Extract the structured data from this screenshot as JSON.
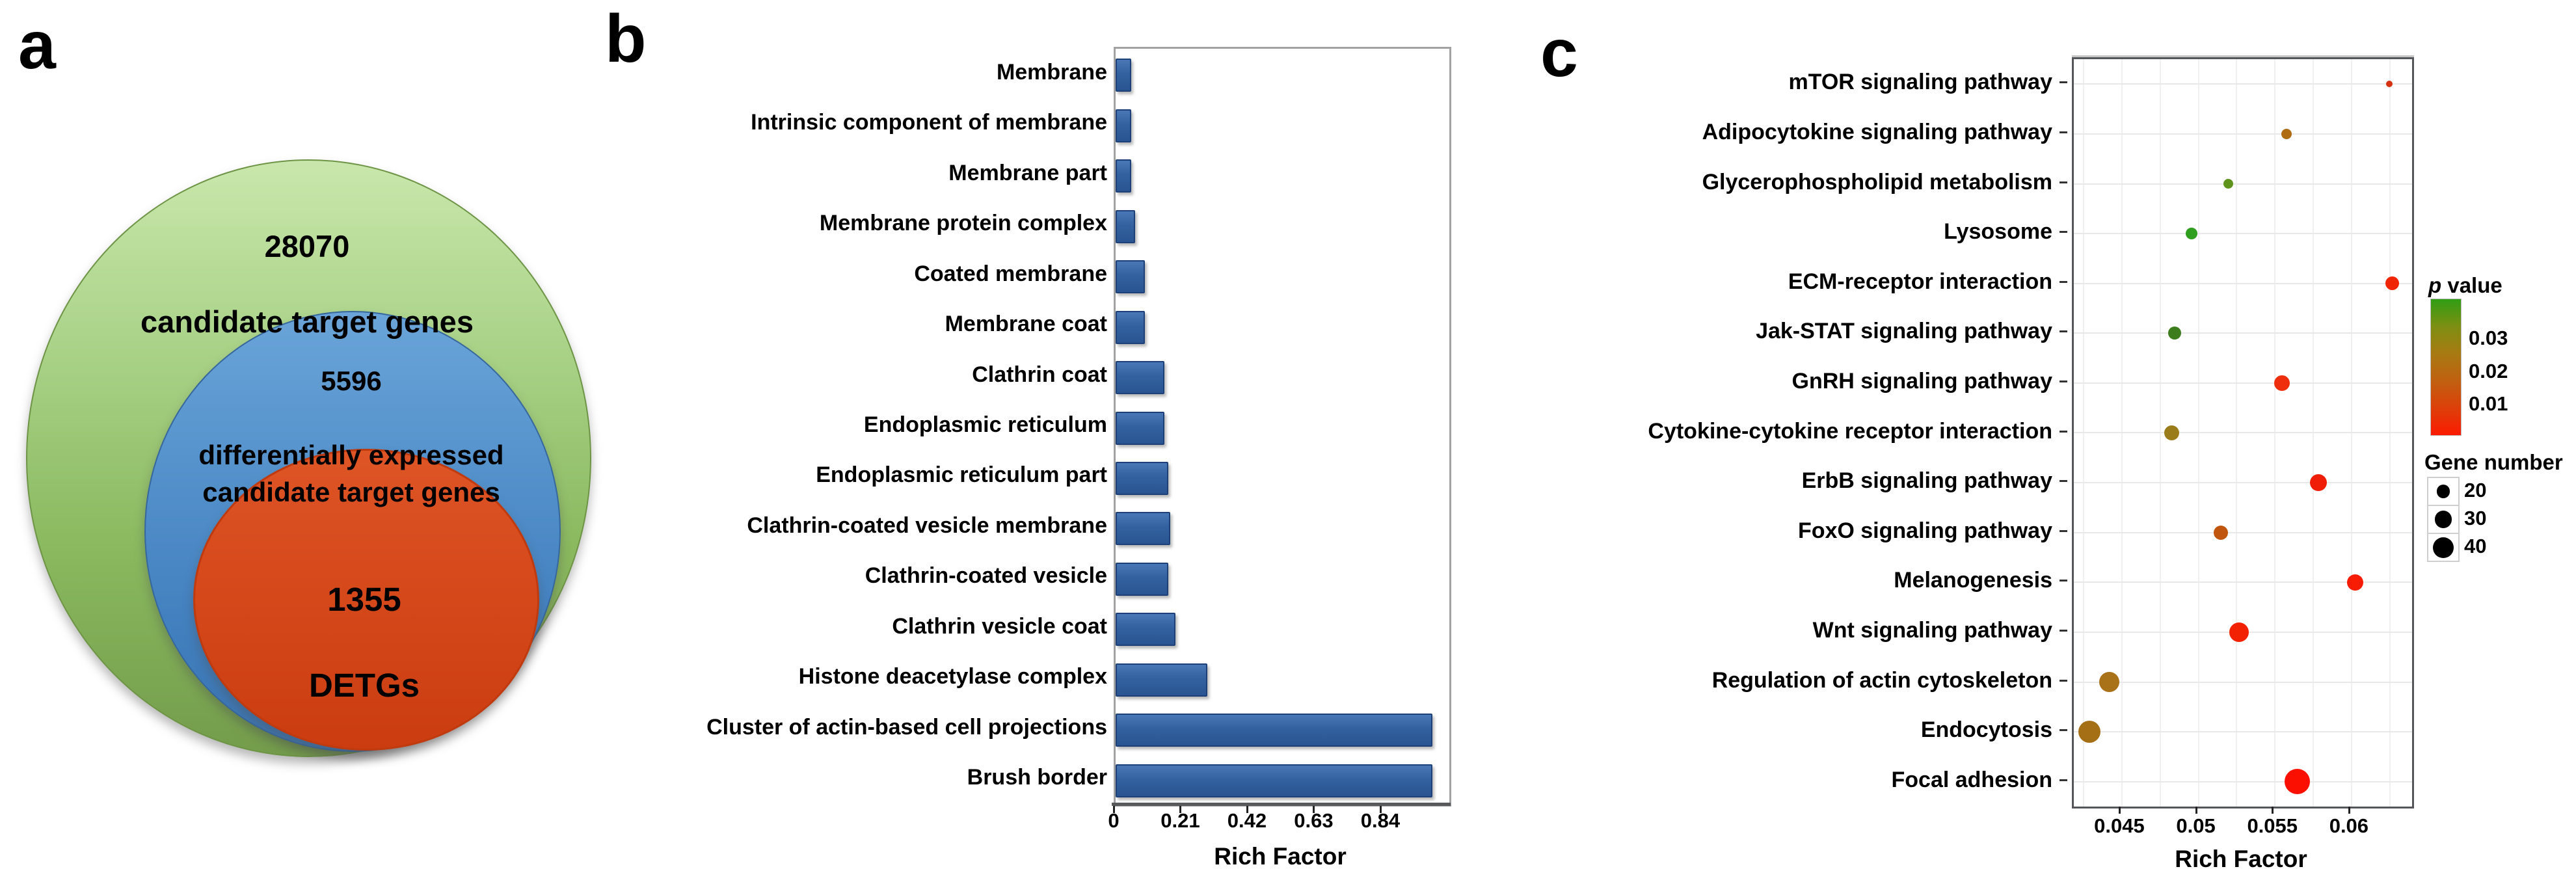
{
  "figure_labels": {
    "a": "a",
    "b": "b",
    "c": "c"
  },
  "panel_a": {
    "sets": [
      {
        "name": "candidate target genes",
        "count": "28070",
        "label": "candidate target genes",
        "fill_top": "#c9e7ac",
        "fill_bottom": "#739c4b",
        "border": "#6d9445"
      },
      {
        "name": "differentially expressed candidate target genes",
        "count": "5596",
        "label": "differentially expressed\ncandidate target genes",
        "fill_top": "#6aa4d8",
        "fill_bottom": "#3a74b2",
        "border": "#35679d"
      },
      {
        "name": "DETGs",
        "count": "1355",
        "label": "DETGs",
        "fill_top": "#de5526",
        "fill_bottom": "#cb3d11",
        "border": "#bf3a0e"
      }
    ]
  },
  "chart_data": [
    {
      "id": "b",
      "type": "bar",
      "orientation": "horizontal",
      "title": "",
      "xlabel": "Rich Factor",
      "x_tick_values": [
        0,
        0.21,
        0.42,
        0.63,
        0.84
      ],
      "x_tick_labels": [
        "0",
        "0.21",
        "0.42",
        "0.63",
        "0.84"
      ],
      "xlim": [
        0,
        1.05
      ],
      "grid": false,
      "bar_color": "#2f5fa5",
      "categories": [
        "Membrane",
        "Intrinsic component of membrane",
        "Membrane part",
        "Membrane protein complex",
        "Coated membrane",
        "Membrane coat",
        "Clathrin coat",
        "Endoplasmic reticulum",
        "Endoplasmic reticulum part",
        "Clathrin-coated vesicle membrane",
        "Clathrin-coated vesicle",
        "Clathrin vesicle coat",
        "Histone deacetylase complex",
        "Cluster of actin-based cell projections",
        "Brush border"
      ],
      "values": [
        0.04,
        0.042,
        0.04,
        0.054,
        0.083,
        0.083,
        0.145,
        0.145,
        0.158,
        0.163,
        0.158,
        0.18,
        0.28,
        0.99,
        0.99
      ]
    },
    {
      "id": "c",
      "type": "scatter",
      "title": "",
      "xlabel": "Rich Factor",
      "x_tick_values": [
        0.045,
        0.05,
        0.055,
        0.06
      ],
      "x_tick_labels": [
        "0.045",
        "0.05",
        "0.055",
        "0.06"
      ],
      "xlim": [
        0.0419,
        0.064
      ],
      "grid": true,
      "grid_step": 0.0025,
      "points": [
        {
          "pathway": "mTOR signaling pathway",
          "rich_factor": 0.0625,
          "gene_number": 4,
          "p_value": 0.008,
          "color": "#d63110"
        },
        {
          "pathway": "Adipocytokine signaling pathway",
          "rich_factor": 0.0558,
          "gene_number": 10,
          "p_value": 0.017,
          "color": "#b06c10"
        },
        {
          "pathway": "Glycerophospholipid metabolism",
          "rich_factor": 0.052,
          "gene_number": 9,
          "p_value": 0.028,
          "color": "#5f941c"
        },
        {
          "pathway": "Lysosome",
          "rich_factor": 0.0496,
          "gene_number": 13,
          "p_value": 0.035,
          "color": "#2f9e1f"
        },
        {
          "pathway": "ECM-receptor interaction",
          "rich_factor": 0.0627,
          "gene_number": 17,
          "p_value": 0.003,
          "color": "#f02504"
        },
        {
          "pathway": "Jak-STAT signaling pathway",
          "rich_factor": 0.0485,
          "gene_number": 16,
          "p_value": 0.032,
          "color": "#3e7d1e"
        },
        {
          "pathway": "GnRH signaling pathway",
          "rich_factor": 0.0555,
          "gene_number": 23,
          "p_value": 0.005,
          "color": "#ee2e0c"
        },
        {
          "pathway": "Cytokine-cytokine receptor interaction",
          "rich_factor": 0.0483,
          "gene_number": 22,
          "p_value": 0.022,
          "color": "#9a7d1a"
        },
        {
          "pathway": "ErbB signaling pathway",
          "rich_factor": 0.0579,
          "gene_number": 28,
          "p_value": 0.006,
          "color": "#f01e06"
        },
        {
          "pathway": "FoxO signaling pathway",
          "rich_factor": 0.0515,
          "gene_number": 19,
          "p_value": 0.012,
          "color": "#c0560e"
        },
        {
          "pathway": "Melanogenesis",
          "rich_factor": 0.0603,
          "gene_number": 26,
          "p_value": 0.003,
          "color": "#f91c04"
        },
        {
          "pathway": "Wnt signaling pathway",
          "rich_factor": 0.0527,
          "gene_number": 36,
          "p_value": 0.004,
          "color": "#f32104"
        },
        {
          "pathway": "Regulation of actin cytoskeleton",
          "rich_factor": 0.0442,
          "gene_number": 39,
          "p_value": 0.018,
          "color": "#a97118"
        },
        {
          "pathway": "Endocytosis",
          "rich_factor": 0.0429,
          "gene_number": 45,
          "p_value": 0.019,
          "color": "#a46f15"
        },
        {
          "pathway": "Focal adhesion",
          "rich_factor": 0.0565,
          "gene_number": 60,
          "p_value": 0.001,
          "color": "#fa0f00"
        }
      ],
      "legend_p_value": {
        "title_italic": "p",
        "title_rest": " value",
        "tick_labels": [
          "0.03",
          "0.02",
          "0.01"
        ],
        "gradient": [
          "#2f9e14",
          "#7d8f12",
          "#a87a12",
          "#c06010",
          "#dd400a",
          "#fb1b00"
        ]
      },
      "legend_gene_number": {
        "title": "Gene number",
        "entries": [
          "20",
          "30",
          "40"
        ]
      }
    }
  ]
}
